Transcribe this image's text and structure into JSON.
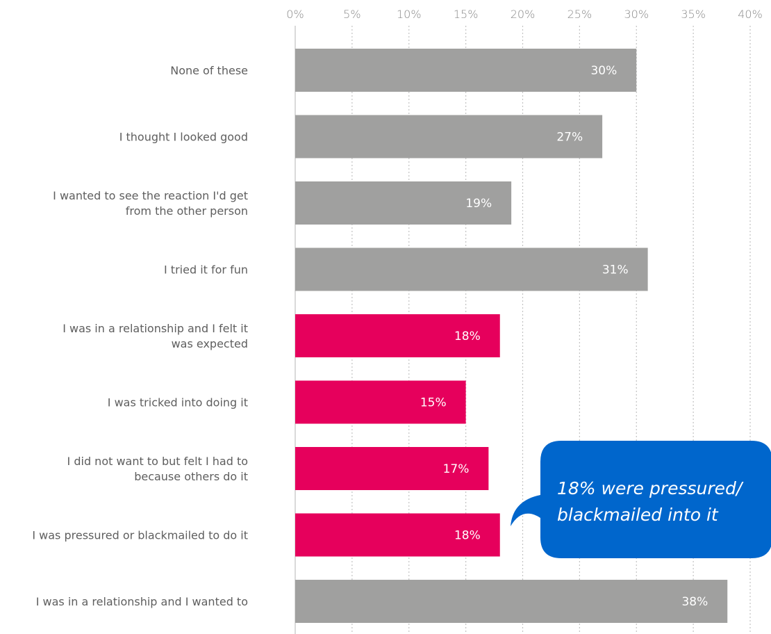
{
  "chart_data": {
    "type": "bar",
    "orientation": "horizontal",
    "categories": [
      [
        "None of these"
      ],
      [
        "I thought I looked good"
      ],
      [
        "I wanted to see the reaction I'd get",
        "from the other person"
      ],
      [
        "I tried it for fun"
      ],
      [
        "I was in a relationship and I felt it",
        "was expected"
      ],
      [
        "I was tricked into doing it"
      ],
      [
        "I did not want to but felt I had to",
        "because others do it"
      ],
      [
        "I was pressured or blackmailed to do it"
      ],
      [
        "I was in a relationship and I wanted to"
      ]
    ],
    "values": [
      30,
      27,
      19,
      31,
      18,
      15,
      17,
      18,
      38
    ],
    "value_labels": [
      "30%",
      "27%",
      "19%",
      "31%",
      "18%",
      "15%",
      "17%",
      "18%",
      "38%"
    ],
    "highlight": [
      false,
      false,
      false,
      false,
      true,
      true,
      true,
      true,
      false
    ],
    "xlim": [
      0,
      40
    ],
    "ticks": [
      0,
      5,
      10,
      15,
      20,
      25,
      30,
      35,
      40
    ],
    "tick_labels": [
      "0%",
      "5%",
      "10%",
      "15%",
      "20%",
      "25%",
      "30%",
      "35%",
      "40%"
    ],
    "axis_position": "top",
    "grid": true,
    "colors": {
      "default_bar": "#a0a09f",
      "highlight_bar": "#e6005c",
      "callout": "#0066cc"
    },
    "annotation": {
      "lines": [
        "18% were pressured/",
        "blackmailed into it"
      ],
      "points_to_index": 7
    }
  }
}
